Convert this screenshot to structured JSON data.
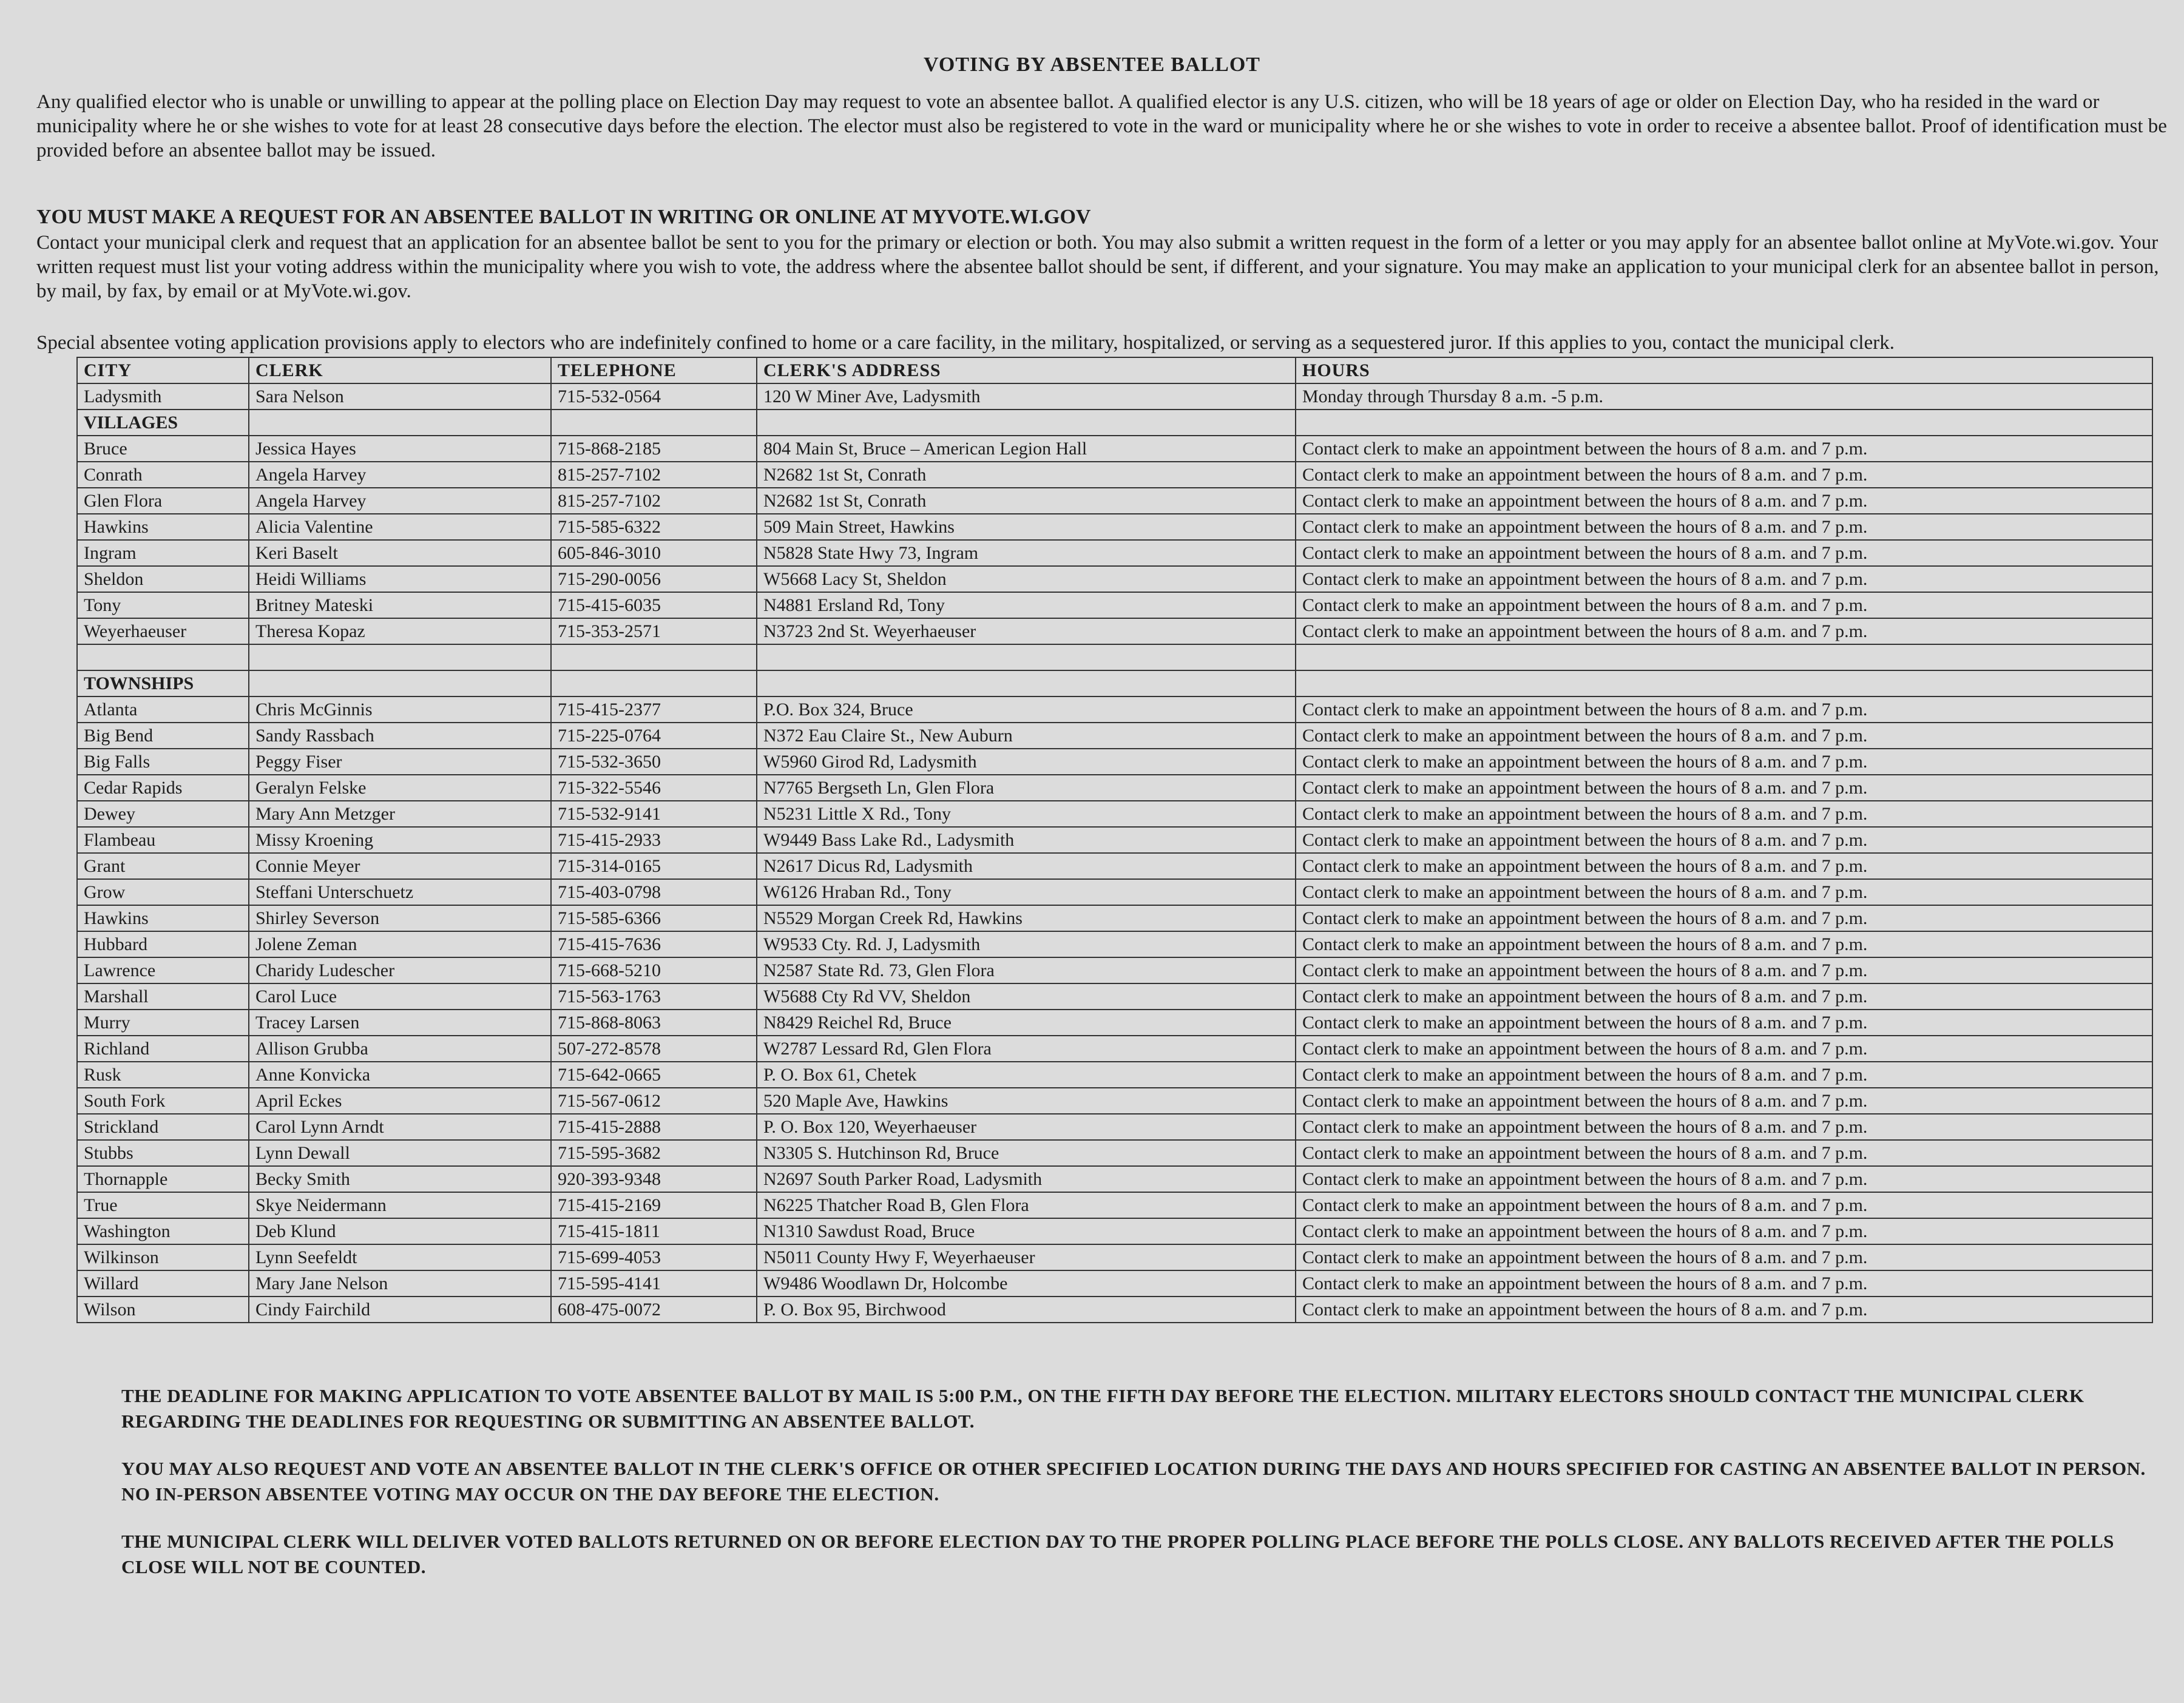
{
  "title": "VOTING BY ABSENTEE BALLOT",
  "intro": [
    "Any qualified elector who is unable or unwilling to appear at the polling place on Election Day may request to vote an absentee ballot. A qualified elector is any U.S. citizen, who will be 18 years of age or older on Election Day, who ha resided in the ward or municipality where he or she wishes to vote for at least 28 consecutive days before the election. The elector must also be registered to vote in the ward or municipality where he or she wishes to vote in order to receive a absentee ballot. Proof of identification must be provided before an absentee ballot may be issued."
  ],
  "request": {
    "heading": "YOU MUST MAKE A REQUEST FOR AN ABSENTEE BALLOT IN WRITING OR ONLINE AT MYVOTE.WI.GOV",
    "text": "Contact your municipal clerk and request that an application for an absentee ballot be sent to you for the primary or election or both. You may also submit a written request in the form of a letter or you may apply for an absentee ballot online at MyVote.wi.gov. Your written request must list your voting address within the municipality where you wish to vote, the address where the absentee ballot should be sent, if different, and your signature. You may make an application to your municipal clerk for an absentee ballot in person, by mail, by fax, by email or at MyVote.wi.gov."
  },
  "special": "Special absentee voting application provisions apply to electors who are indefinitely confined to home or a care facility, in the military, hospitalized, or serving as a sequestered juror. If this applies to you, contact the municipal clerk.",
  "table": {
    "header": [
      "CITY",
      "CLERK",
      "TELEPHONE",
      "CLERK'S ADDRESS",
      "HOURS"
    ],
    "rows": [
      [
        "Ladysmith",
        "Sara Nelson",
        "715-532-0564",
        "120 W Miner Ave, Ladysmith",
        "Monday through Thursday 8 a.m. -5 p.m."
      ],
      [
        "VILLAGES"
      ],
      [
        "Bruce",
        "Jessica Hayes",
        "715-868-2185",
        "804 Main St, Bruce – American Legion Hall",
        "Contact clerk to make an appointment between the hours of 8 a.m. and 7 p.m."
      ],
      [
        "Conrath",
        "Angela Harvey",
        "815-257-7102",
        "N2682 1st St, Conrath",
        "Contact clerk to make an appointment between the hours of 8 a.m. and 7 p.m."
      ],
      [
        "Glen Flora",
        "Angela Harvey",
        "815-257-7102",
        "N2682 1st St, Conrath",
        "Contact clerk to make an appointment between the hours of 8 a.m. and 7 p.m."
      ],
      [
        "Hawkins",
        "Alicia Valentine",
        "715-585-6322",
        "509 Main Street, Hawkins",
        "Contact clerk to make an appointment between the hours of 8 a.m. and 7 p.m."
      ],
      [
        "Ingram",
        "Keri Baselt",
        "605-846-3010",
        "N5828 State Hwy 73, Ingram",
        "Contact clerk to make an appointment between the hours of 8 a.m. and 7 p.m."
      ],
      [
        "Sheldon",
        "Heidi Williams",
        "715-290-0056",
        "W5668 Lacy St, Sheldon",
        "Contact clerk to make an appointment between the hours of 8 a.m. and 7 p.m."
      ],
      [
        "Tony",
        "Britney Mateski",
        "715-415-6035",
        "N4881 Ersland Rd, Tony",
        "Contact clerk to make an appointment between the hours of 8 a.m. and 7 p.m."
      ],
      [
        "Weyerhaeuser",
        "Theresa Kopaz",
        "715-353-2571",
        "N3723 2nd St. Weyerhaeuser",
        "Contact clerk to make an appointment between the hours of 8 a.m. and 7 p.m."
      ],
      [],
      [
        "TOWNSHIPS"
      ],
      [
        "Atlanta",
        "Chris McGinnis",
        "715-415-2377",
        "P.O. Box 324, Bruce",
        "Contact clerk to make an appointment between the hours of 8 a.m. and 7 p.m."
      ],
      [
        "Big Bend",
        "Sandy Rassbach",
        "715-225-0764",
        "N372 Eau Claire St., New Auburn",
        "Contact clerk to make an appointment between the hours of 8 a.m. and 7 p.m."
      ],
      [
        "Big Falls",
        "Peggy Fiser",
        "715-532-3650",
        "W5960 Girod Rd, Ladysmith",
        "Contact clerk to make an appointment between the hours of 8 a.m. and 7 p.m."
      ],
      [
        "Cedar Rapids",
        "Geralyn Felske",
        "715-322-5546",
        "N7765 Bergseth Ln, Glen Flora",
        "Contact clerk to make an appointment between the hours of 8 a.m. and 7 p.m."
      ],
      [
        "Dewey",
        "Mary Ann Metzger",
        "715-532-9141",
        "N5231 Little X Rd., Tony",
        "Contact clerk to make an appointment between the hours of 8 a.m. and 7 p.m."
      ],
      [
        "Flambeau",
        "Missy Kroening",
        "715-415-2933",
        "W9449 Bass Lake Rd., Ladysmith",
        "Contact clerk to make an appointment between the hours of 8 a.m. and 7 p.m."
      ],
      [
        "Grant",
        "Connie Meyer",
        "715-314-0165",
        "N2617 Dicus Rd, Ladysmith",
        "Contact clerk to make an appointment between the hours of 8 a.m. and 7 p.m."
      ],
      [
        "Grow",
        "Steffani Unterschuetz",
        "715-403-0798",
        "W6126 Hraban Rd., Tony",
        "Contact clerk to make an appointment between the hours of 8 a.m. and 7 p.m."
      ],
      [
        "Hawkins",
        "Shirley Severson",
        "715-585-6366",
        "N5529 Morgan Creek Rd, Hawkins",
        "Contact clerk to make an appointment between the hours of 8 a.m. and 7 p.m."
      ],
      [
        "Hubbard",
        "Jolene Zeman",
        "715-415-7636",
        "W9533 Cty. Rd. J, Ladysmith",
        "Contact clerk to make an appointment between the hours of 8 a.m. and 7 p.m."
      ],
      [
        "Lawrence",
        "Charidy Ludescher",
        "715-668-5210",
        "N2587 State Rd. 73, Glen Flora",
        "Contact clerk to make an appointment between the hours of 8 a.m. and 7 p.m."
      ],
      [
        "Marshall",
        "Carol Luce",
        "715-563-1763",
        "W5688 Cty Rd VV, Sheldon",
        "Contact clerk to make an appointment between the hours of 8 a.m. and 7 p.m."
      ],
      [
        "Murry",
        "Tracey Larsen",
        "715-868-8063",
        "N8429 Reichel Rd, Bruce",
        "Contact clerk to make an appointment between the hours of 8 a.m. and 7 p.m."
      ],
      [
        "Richland",
        "Allison Grubba",
        "507-272-8578",
        "W2787 Lessard Rd, Glen Flora",
        "Contact clerk to make an appointment between the hours of 8 a.m. and 7 p.m."
      ],
      [
        "Rusk",
        "Anne Konvicka",
        "715-642-0665",
        "P. O. Box 61, Chetek",
        "Contact clerk to make an appointment between the hours of 8 a.m. and 7 p.m."
      ],
      [
        "South Fork",
        "April Eckes",
        "715-567-0612",
        "520 Maple Ave, Hawkins",
        "Contact clerk to make an appointment between the hours of 8 a.m. and 7 p.m."
      ],
      [
        "Strickland",
        "Carol Lynn Arndt",
        "715-415-2888",
        "P. O. Box 120, Weyerhaeuser",
        "Contact clerk to make an appointment between the hours of 8 a.m. and 7 p.m."
      ],
      [
        "Stubbs",
        "Lynn Dewall",
        "715-595-3682",
        "N3305 S. Hutchinson Rd, Bruce",
        "Contact clerk to make an appointment between the hours of 8 a.m. and 7 p.m."
      ],
      [
        "Thornapple",
        "Becky Smith",
        "920-393-9348",
        "N2697 South Parker Road, Ladysmith",
        "Contact clerk to make an appointment between the hours of 8 a.m. and 7 p.m."
      ],
      [
        "True",
        "Skye Neidermann",
        "715-415-2169",
        "N6225 Thatcher Road B, Glen Flora",
        "Contact clerk to make an appointment between the hours of 8 a.m. and 7 p.m."
      ],
      [
        "Washington",
        "Deb Klund",
        "715-415-1811",
        "N1310 Sawdust Road, Bruce",
        "Contact clerk to make an appointment between the hours of 8 a.m. and 7 p.m."
      ],
      [
        "Wilkinson",
        "Lynn Seefeldt",
        "715-699-4053",
        "N5011 County Hwy F, Weyerhaeuser",
        "Contact clerk to make an appointment between the hours of 8 a.m. and 7 p.m."
      ],
      [
        "Willard",
        "Mary Jane Nelson",
        "715-595-4141",
        "W9486 Woodlawn Dr, Holcombe",
        "Contact clerk to make an appointment between the hours of 8 a.m. and 7 p.m."
      ],
      [
        "Wilson",
        "Cindy Fairchild",
        "608-475-0072",
        "P. O. Box 95, Birchwood",
        "Contact clerk to make an appointment between the hours of 8 a.m. and 7 p.m."
      ]
    ]
  },
  "footer": [
    "THE DEADLINE FOR MAKING APPLICATION TO VOTE ABSENTEE BALLOT BY MAIL IS 5:00 P.M., ON THE FIFTH DAY BEFORE THE ELECTION. MILITARY ELECTORS SHOULD CONTACT THE MUNICIPAL CLERK REGARDING THE DEADLINES FOR REQUESTING OR SUBMITTING AN ABSENTEE BALLOT.",
    "YOU MAY ALSO REQUEST AND VOTE AN ABSENTEE BALLOT IN THE CLERK'S OFFICE OR OTHER SPECIFIED LOCATION DURING THE DAYS AND HOURS SPECIFIED FOR CASTING AN ABSENTEE BALLOT IN PERSON. NO IN-PERSON ABSENTEE VOTING MAY OCCUR ON THE DAY BEFORE THE ELECTION.",
    "THE MUNICIPAL CLERK WILL DELIVER VOTED BALLOTS RETURNED ON OR BEFORE ELECTION DAY TO THE PROPER POLLING PLACE BEFORE THE POLLS CLOSE. ANY BALLOTS RECEIVED AFTER THE POLLS CLOSE WILL NOT BE COUNTED."
  ]
}
